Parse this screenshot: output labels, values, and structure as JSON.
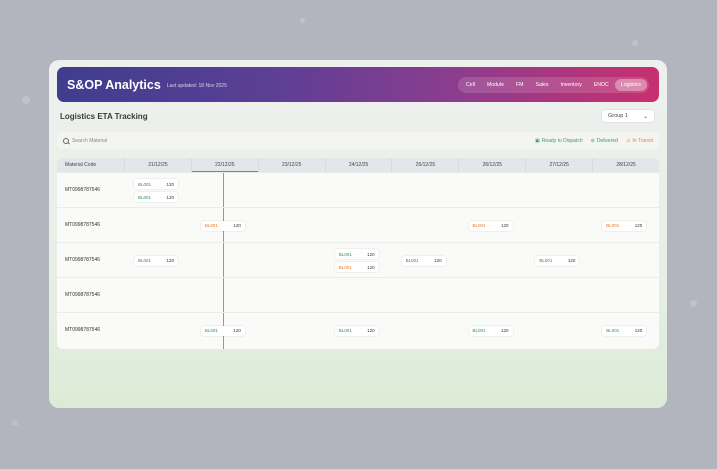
{
  "header": {
    "title": "S&OP Analytics",
    "last_updated": "Last updated: 18 Nov 2025",
    "nav": [
      "Cell",
      "Module",
      "FM",
      "Sales",
      "Inventory",
      "ENOC",
      "Logistics"
    ],
    "active_nav": "Logistics"
  },
  "page": {
    "title": "Logistics ETA Tracking",
    "group_select": "Group 1"
  },
  "toolbar": {
    "search_placeholder": "Search Material",
    "legend": {
      "ready": "Ready to Dispatch",
      "delivered": "Delivered",
      "in_transit": "In Transit"
    }
  },
  "colors": {
    "green": "#2f8f5a",
    "orange": "#e27a25",
    "today_line": "#e87a4c"
  },
  "table": {
    "col_material": "Material Code",
    "dates": [
      "21/12/25",
      "22/12/25",
      "23/12/25",
      "24/12/25",
      "25/12/25",
      "26/12/25",
      "27/12/25",
      "28/12/25"
    ],
    "today": "22/12/25",
    "rows": [
      {
        "code": "MT0998787546",
        "chips": [
          {
            "date_index": 0,
            "slot": 0,
            "label": "BL001",
            "qty": "120",
            "status": "green"
          },
          {
            "date_index": 0,
            "slot": 1,
            "label": "BL001",
            "qty": "120",
            "status": "green"
          }
        ]
      },
      {
        "code": "MT0998787546",
        "chips": [
          {
            "date_index": 1,
            "slot": 0,
            "label": "BL001",
            "qty": "120",
            "status": "orange"
          },
          {
            "date_index": 5,
            "slot": 0,
            "label": "BL001",
            "qty": "120",
            "status": "orange"
          },
          {
            "date_index": 7,
            "slot": 0,
            "label": "BL001",
            "qty": "120",
            "status": "orange"
          }
        ]
      },
      {
        "code": "MT0998787546",
        "chips": [
          {
            "date_index": 0,
            "slot": 0,
            "label": "BL001",
            "qty": "120",
            "status": "green"
          },
          {
            "date_index": 3,
            "slot": 0,
            "label": "BL001",
            "qty": "120",
            "status": "green"
          },
          {
            "date_index": 3,
            "slot": 1,
            "label": "BL001",
            "qty": "120",
            "status": "orange"
          },
          {
            "date_index": 4,
            "slot": 0,
            "label": "BL001",
            "qty": "120",
            "status": "green"
          },
          {
            "date_index": 6,
            "slot": 0,
            "label": "BL001",
            "qty": "120",
            "status": "green"
          }
        ]
      },
      {
        "code": "MT0998787546",
        "chips": []
      },
      {
        "code": "MT0998787546",
        "chips": [
          {
            "date_index": 1,
            "slot": 0,
            "label": "BL001",
            "qty": "120",
            "status": "green"
          },
          {
            "date_index": 3,
            "slot": 0,
            "label": "BL001",
            "qty": "120",
            "status": "green"
          },
          {
            "date_index": 5,
            "slot": 0,
            "label": "BL001",
            "qty": "120",
            "status": "green"
          },
          {
            "date_index": 7,
            "slot": 0,
            "label": "BL001",
            "qty": "120",
            "status": "green"
          }
        ]
      }
    ]
  }
}
